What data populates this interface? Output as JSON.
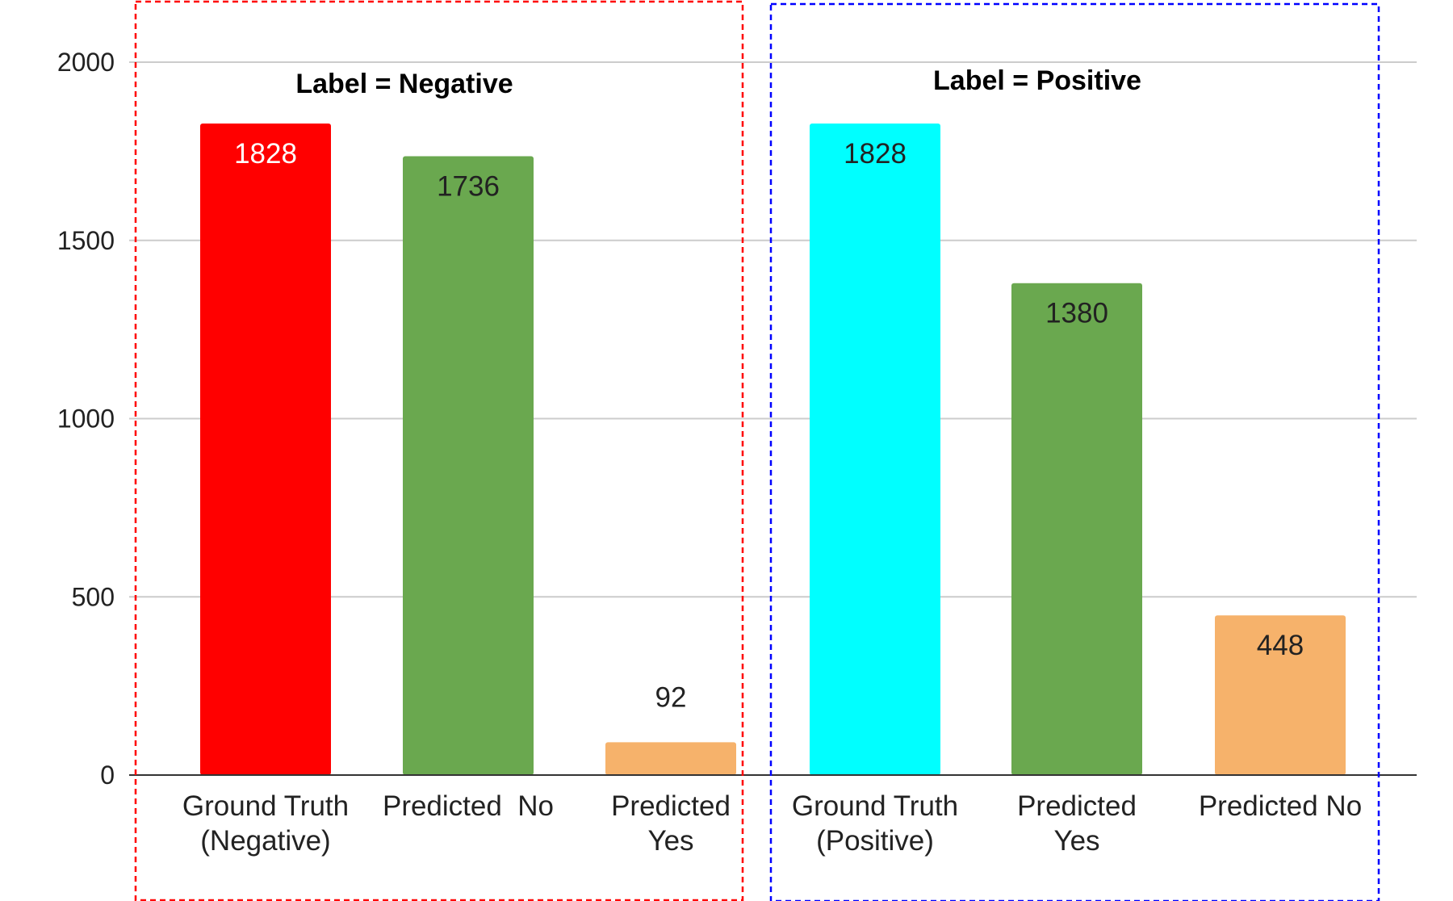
{
  "chart_data": {
    "type": "bar",
    "ylim": [
      0,
      2000
    ],
    "yticks": [
      0,
      500,
      1000,
      1500,
      2000
    ],
    "grid": true,
    "categories": [
      "Ground Truth (Negative)",
      "Predicted  No",
      "Predicted Yes",
      "Ground Truth (Positive)",
      "Predicted Yes",
      "Predicted No"
    ],
    "category_label_lines": [
      [
        "Ground Truth",
        "(Negative)"
      ],
      [
        "Predicted  No"
      ],
      [
        "Predicted",
        "Yes"
      ],
      [
        "Ground Truth",
        "(Positive)"
      ],
      [
        "Predicted",
        "Yes"
      ],
      [
        "Predicted No"
      ]
    ],
    "values": [
      1828,
      1736,
      92,
      1828,
      1380,
      448
    ],
    "bar_colors": [
      "#ff0000",
      "#6aa84f",
      "#f6b26b",
      "#00ffff",
      "#6aa84f",
      "#f6b26b"
    ],
    "value_label_colors": [
      "#ffffff",
      "#222222",
      "#222222",
      "#222222",
      "#222222",
      "#222222"
    ],
    "groups": [
      {
        "title": "Label = Negative",
        "border_color": "#ff0000",
        "bar_indices": [
          0,
          1,
          2
        ]
      },
      {
        "title": "Label = Positive",
        "border_color": "#0000ff",
        "bar_indices": [
          3,
          4,
          5
        ]
      }
    ]
  }
}
